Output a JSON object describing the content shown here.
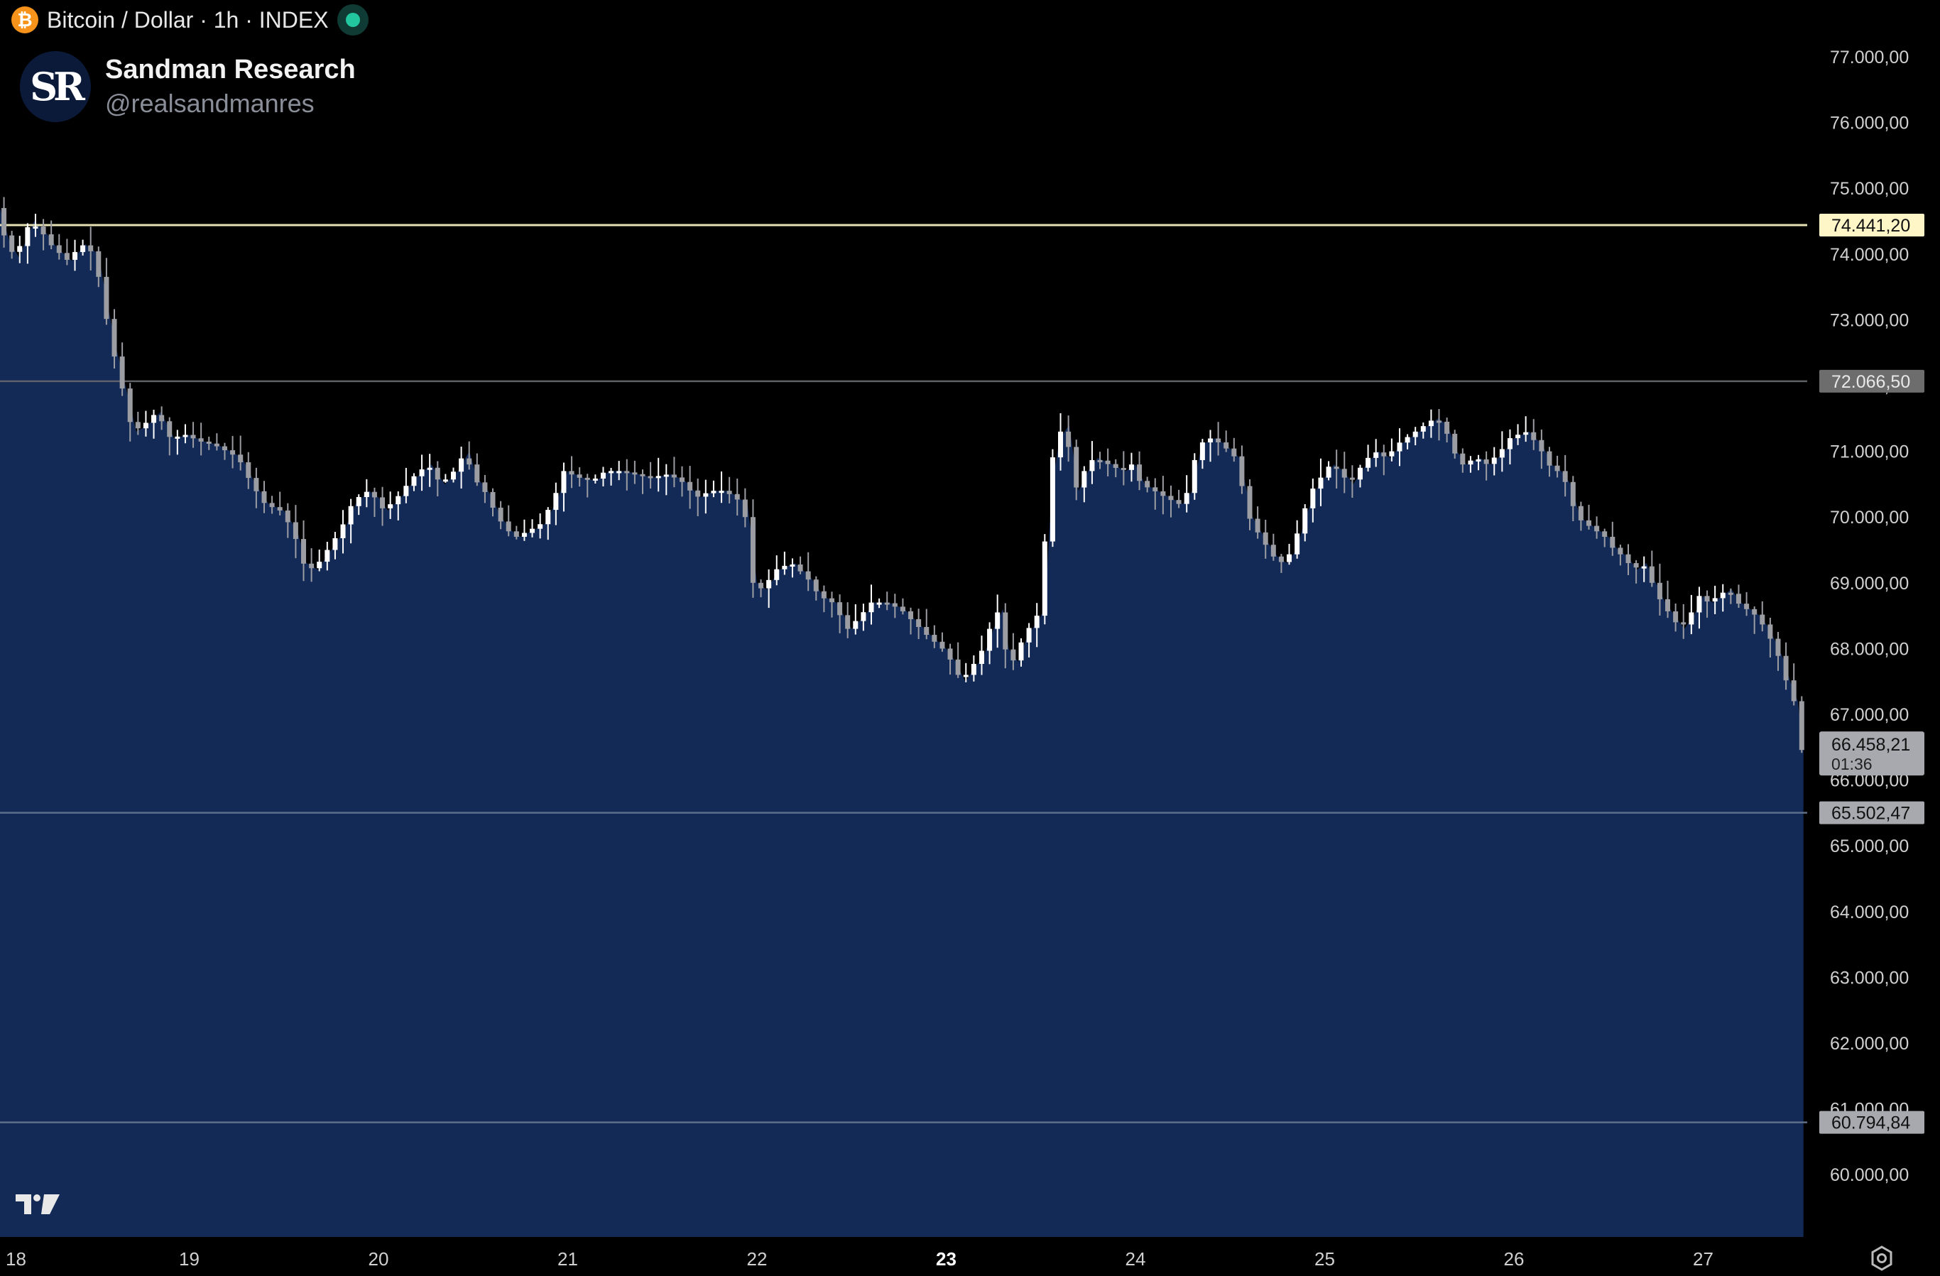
{
  "header": {
    "symbol": "Bitcoin / Dollar · 1h · INDEX",
    "coin_icon": "bitcoin-icon",
    "live_indicator": "live-dot-icon"
  },
  "watermark": {
    "logo_text": "SR",
    "name": "Sandman Research",
    "handle": "@realsandmanres"
  },
  "colors": {
    "background": "#000000",
    "area_fill": "#132a57",
    "candle_up": "#ffffff",
    "candle_down": "#9b9da3",
    "resistance_line": "#e6e0b5",
    "level_line": "#5f6168",
    "support_line": "#5e6f8a"
  },
  "chart_data": {
    "type": "candlestick",
    "timeframe": "1h",
    "x_ticks": [
      {
        "label": "18",
        "day": 18
      },
      {
        "label": "19",
        "day": 19
      },
      {
        "label": "20",
        "day": 20
      },
      {
        "label": "21",
        "day": 21
      },
      {
        "label": "22",
        "day": 22
      },
      {
        "label": "23",
        "day": 23,
        "bold": true
      },
      {
        "label": "24",
        "day": 24
      },
      {
        "label": "25",
        "day": 25
      },
      {
        "label": "26",
        "day": 26
      },
      {
        "label": "27",
        "day": 27
      }
    ],
    "y_ticks": [
      "77.000,00",
      "76.000,00",
      "75.000,00",
      "74.000,00",
      "73.000,00",
      "72.000,00",
      "71.000,00",
      "70.000,00",
      "69.000,00",
      "68.000,00",
      "67.000,00",
      "66.000,00",
      "65.000,00",
      "64.000,00",
      "63.000,00",
      "62.000,00",
      "61.000,00",
      "60.000,00"
    ],
    "y_range": [
      59200,
      77800
    ],
    "x_range_days": [
      18.0,
      27.54
    ],
    "horizontal_levels": [
      {
        "value": 74441.2,
        "label": "74.441,20",
        "style": "resistance"
      },
      {
        "value": 72066.5,
        "label": "72.066,50",
        "style": "level"
      },
      {
        "value": 65502.47,
        "label": "65.502,47",
        "style": "support"
      },
      {
        "value": 60794.84,
        "label": "60.794,84",
        "style": "support"
      }
    ],
    "last_price": {
      "value": 66458.21,
      "label": "66.458,21",
      "countdown": "01:36"
    },
    "price_path": [
      [
        18.0,
        74700
      ],
      [
        18.05,
        74200
      ],
      [
        18.1,
        73950
      ],
      [
        18.18,
        74500
      ],
      [
        18.25,
        74300
      ],
      [
        18.3,
        74100
      ],
      [
        18.38,
        73900
      ],
      [
        18.45,
        74150
      ],
      [
        18.52,
        74000
      ],
      [
        18.57,
        73200
      ],
      [
        18.62,
        72500
      ],
      [
        18.68,
        71800
      ],
      [
        18.72,
        71300
      ],
      [
        18.78,
        71400
      ],
      [
        18.85,
        71600
      ],
      [
        18.92,
        71200
      ],
      [
        19.0,
        71250
      ],
      [
        19.08,
        71150
      ],
      [
        19.15,
        71100
      ],
      [
        19.22,
        71000
      ],
      [
        19.28,
        70900
      ],
      [
        19.35,
        70500
      ],
      [
        19.42,
        70200
      ],
      [
        19.5,
        70100
      ],
      [
        19.57,
        69800
      ],
      [
        19.62,
        69300
      ],
      [
        19.68,
        69200
      ],
      [
        19.75,
        69500
      ],
      [
        19.82,
        69800
      ],
      [
        19.88,
        70200
      ],
      [
        19.95,
        70400
      ],
      [
        20.0,
        70300
      ],
      [
        20.05,
        70100
      ],
      [
        20.12,
        70300
      ],
      [
        20.2,
        70600
      ],
      [
        20.28,
        70800
      ],
      [
        20.35,
        70500
      ],
      [
        20.42,
        70700
      ],
      [
        20.48,
        71000
      ],
      [
        20.52,
        70600
      ],
      [
        20.58,
        70400
      ],
      [
        20.65,
        70000
      ],
      [
        20.7,
        69800
      ],
      [
        20.75,
        69700
      ],
      [
        20.82,
        69800
      ],
      [
        20.88,
        69900
      ],
      [
        20.95,
        70300
      ],
      [
        21.0,
        70700
      ],
      [
        21.08,
        70600
      ],
      [
        21.15,
        70550
      ],
      [
        21.22,
        70700
      ],
      [
        21.3,
        70700
      ],
      [
        21.38,
        70650
      ],
      [
        21.45,
        70600
      ],
      [
        21.55,
        70650
      ],
      [
        21.62,
        70550
      ],
      [
        21.7,
        70300
      ],
      [
        21.78,
        70400
      ],
      [
        21.85,
        70400
      ],
      [
        21.95,
        70200
      ],
      [
        22.0,
        69000
      ],
      [
        22.05,
        68900
      ],
      [
        22.12,
        69200
      ],
      [
        22.2,
        69300
      ],
      [
        22.28,
        69100
      ],
      [
        22.35,
        68800
      ],
      [
        22.42,
        68700
      ],
      [
        22.5,
        68300
      ],
      [
        22.57,
        68500
      ],
      [
        22.62,
        68700
      ],
      [
        22.7,
        68700
      ],
      [
        22.78,
        68600
      ],
      [
        22.85,
        68400
      ],
      [
        22.92,
        68200
      ],
      [
        23.0,
        68000
      ],
      [
        23.05,
        67800
      ],
      [
        23.1,
        67500
      ],
      [
        23.15,
        67700
      ],
      [
        23.2,
        67900
      ],
      [
        23.25,
        68300
      ],
      [
        23.3,
        68600
      ],
      [
        23.33,
        68000
      ],
      [
        23.38,
        67800
      ],
      [
        23.43,
        68200
      ],
      [
        23.48,
        68400
      ],
      [
        23.52,
        68600
      ],
      [
        23.56,
        70500
      ],
      [
        23.6,
        71200
      ],
      [
        23.65,
        71400
      ],
      [
        23.7,
        70400
      ],
      [
        23.75,
        70700
      ],
      [
        23.8,
        70900
      ],
      [
        23.88,
        70800
      ],
      [
        23.95,
        70700
      ],
      [
        24.0,
        70800
      ],
      [
        24.05,
        70500
      ],
      [
        24.12,
        70400
      ],
      [
        24.18,
        70300
      ],
      [
        24.25,
        70200
      ],
      [
        24.3,
        70400
      ],
      [
        24.35,
        71100
      ],
      [
        24.42,
        71200
      ],
      [
        24.48,
        71100
      ],
      [
        24.55,
        70900
      ],
      [
        24.62,
        70000
      ],
      [
        24.68,
        69700
      ],
      [
        24.75,
        69400
      ],
      [
        24.8,
        69300
      ],
      [
        24.85,
        69500
      ],
      [
        24.9,
        70000
      ],
      [
        24.95,
        70400
      ],
      [
        25.0,
        70600
      ],
      [
        25.05,
        70800
      ],
      [
        25.1,
        70700
      ],
      [
        25.15,
        70500
      ],
      [
        25.22,
        70800
      ],
      [
        25.28,
        71000
      ],
      [
        25.35,
        70900
      ],
      [
        25.4,
        71100
      ],
      [
        25.45,
        71200
      ],
      [
        25.5,
        71300
      ],
      [
        25.55,
        71400
      ],
      [
        25.6,
        71500
      ],
      [
        25.65,
        71400
      ],
      [
        25.7,
        71000
      ],
      [
        25.75,
        70800
      ],
      [
        25.82,
        70900
      ],
      [
        25.88,
        70800
      ],
      [
        25.95,
        71000
      ],
      [
        26.0,
        71200
      ],
      [
        26.08,
        71300
      ],
      [
        26.15,
        71100
      ],
      [
        26.2,
        70800
      ],
      [
        26.25,
        70700
      ],
      [
        26.3,
        70500
      ],
      [
        26.35,
        70000
      ],
      [
        26.4,
        69900
      ],
      [
        26.45,
        69800
      ],
      [
        26.5,
        69700
      ],
      [
        26.55,
        69500
      ],
      [
        26.6,
        69400
      ],
      [
        26.65,
        69200
      ],
      [
        26.7,
        69300
      ],
      [
        26.75,
        69000
      ],
      [
        26.8,
        68700
      ],
      [
        26.85,
        68500
      ],
      [
        26.9,
        68300
      ],
      [
        26.95,
        68500
      ],
      [
        27.0,
        68800
      ],
      [
        27.05,
        68700
      ],
      [
        27.1,
        68800
      ],
      [
        27.15,
        68900
      ],
      [
        27.2,
        68700
      ],
      [
        27.25,
        68600
      ],
      [
        27.3,
        68500
      ],
      [
        27.35,
        68300
      ],
      [
        27.4,
        68000
      ],
      [
        27.43,
        67800
      ],
      [
        27.46,
        67500
      ],
      [
        27.5,
        67200
      ],
      [
        27.53,
        66458
      ]
    ]
  }
}
